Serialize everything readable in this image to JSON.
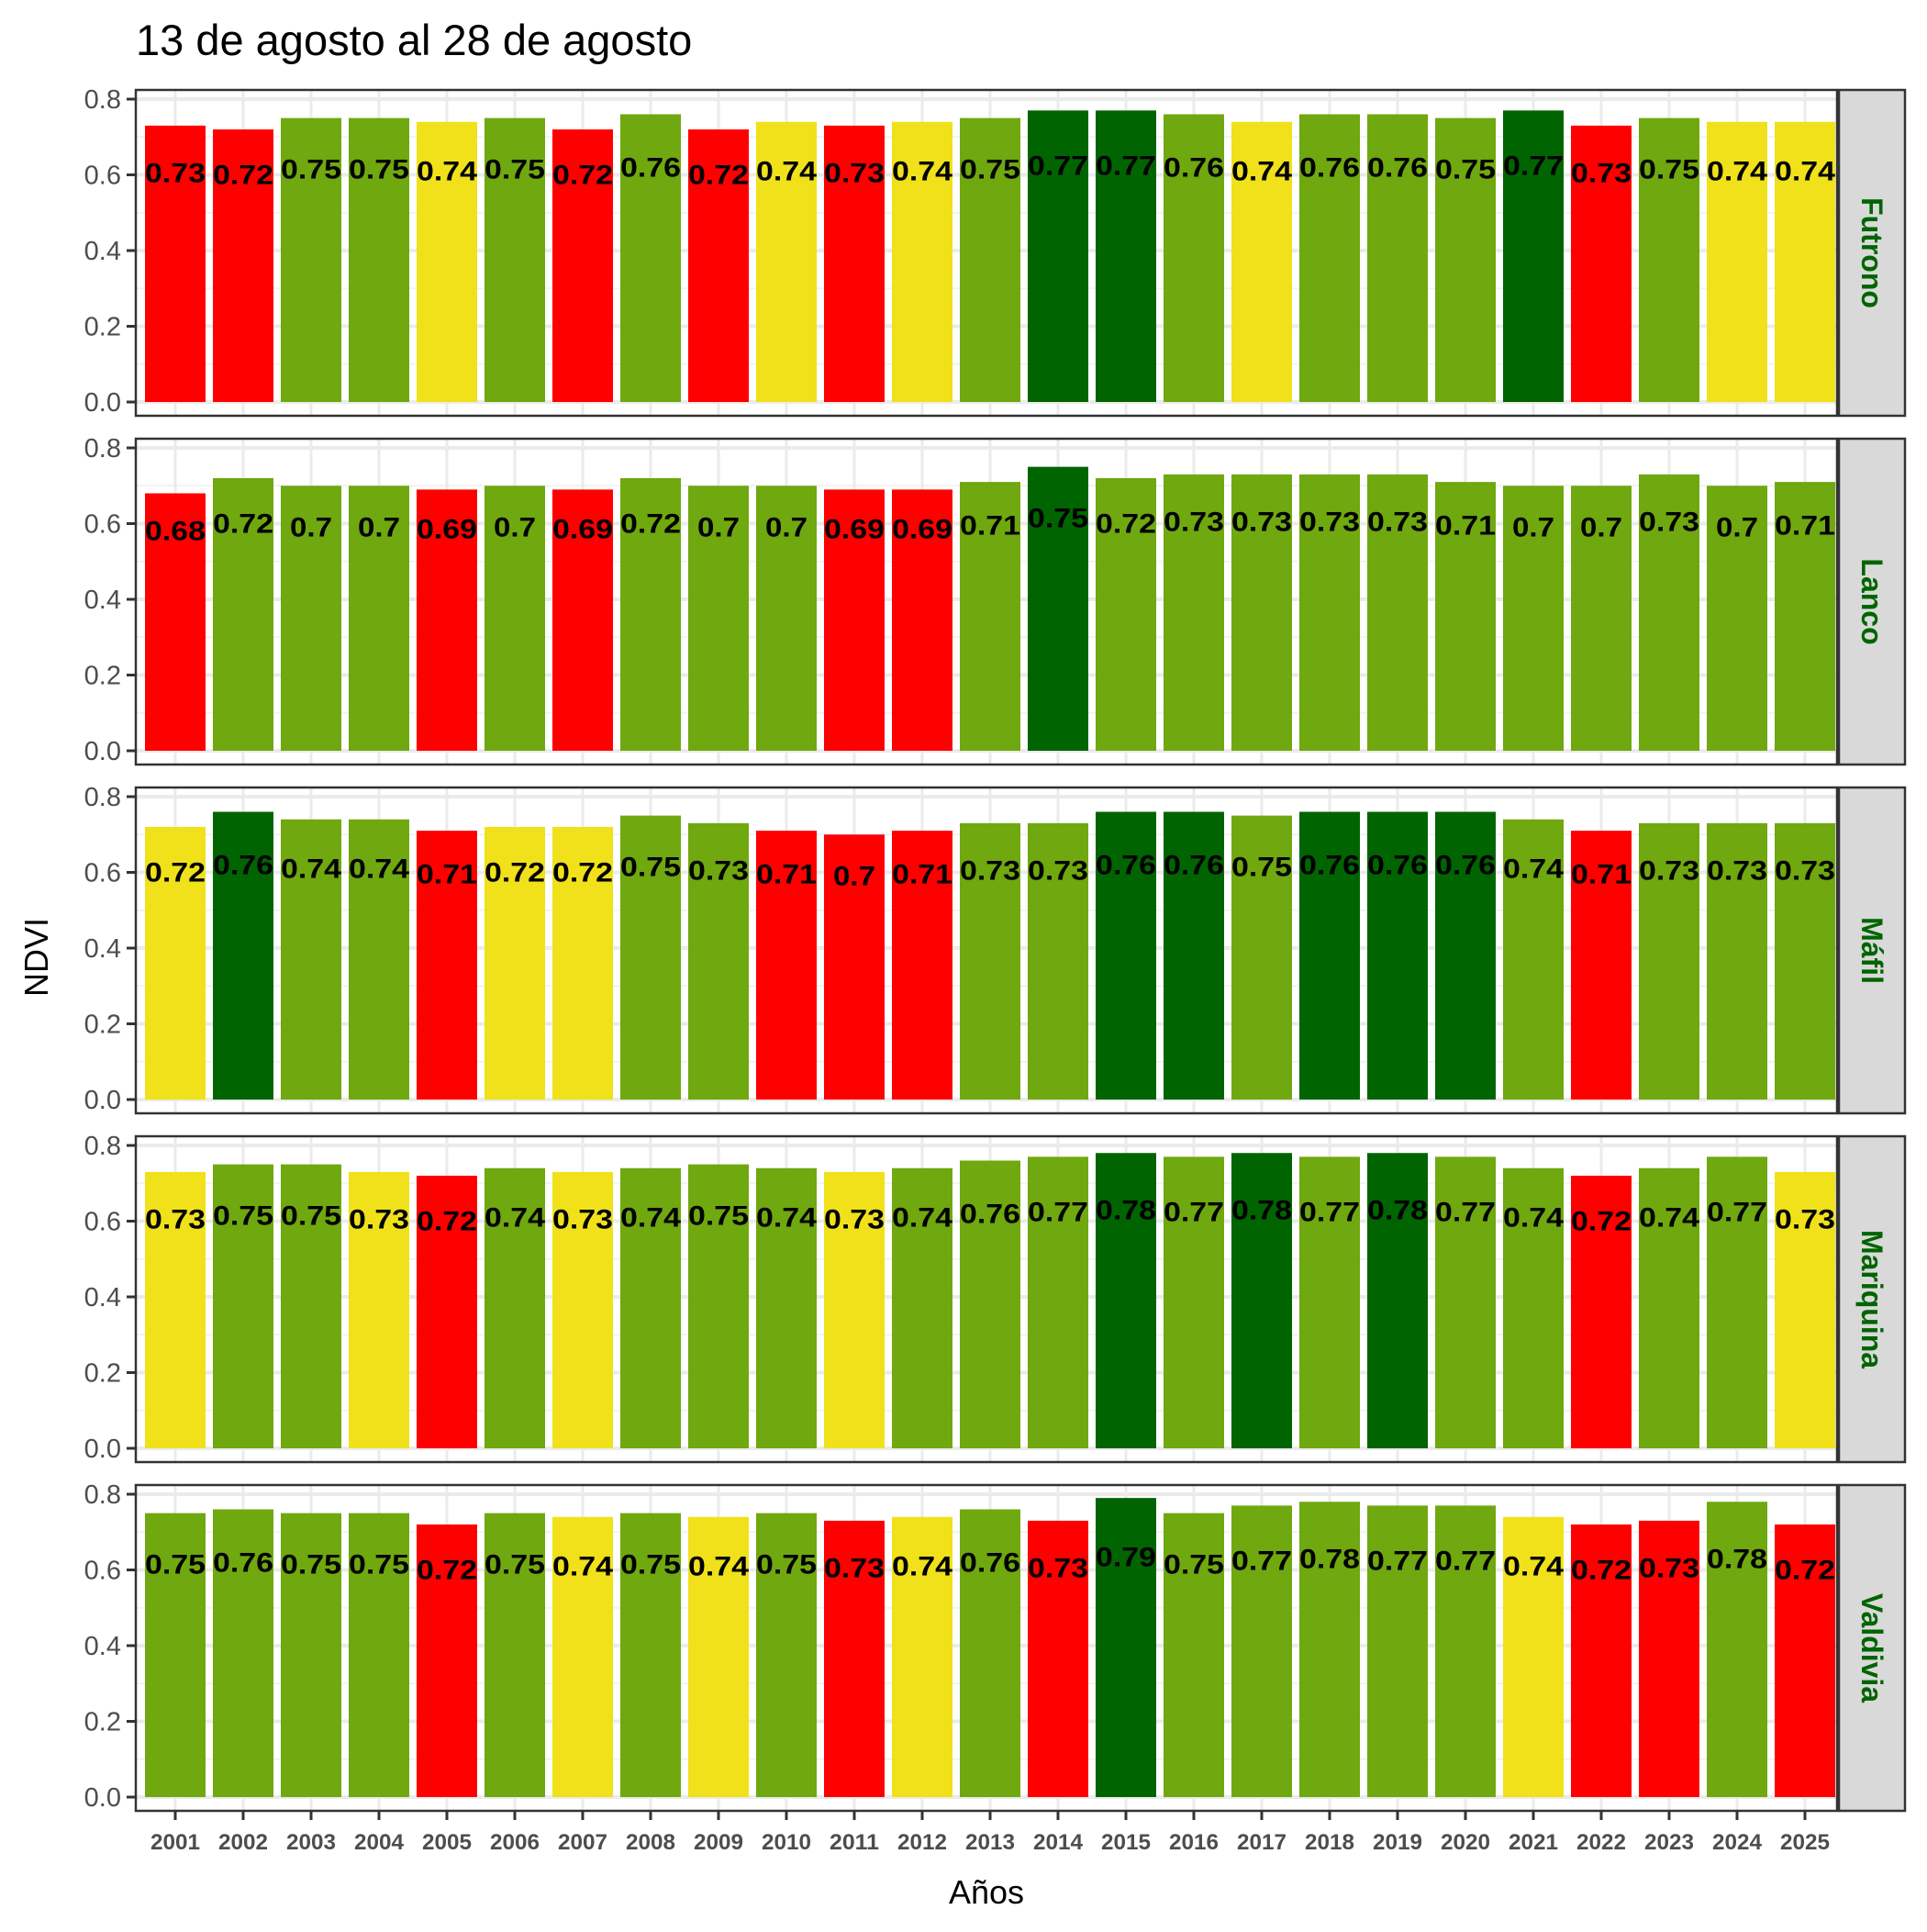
{
  "chart_data": {
    "type": "bar",
    "title": "13 de agosto al 28 de agosto",
    "xlabel": "Años",
    "ylabel": "NDVI",
    "ylim": [
      0,
      0.8
    ],
    "yticks": [
      "0.0",
      "0.2",
      "0.4",
      "0.6",
      "0.8"
    ],
    "grid": true,
    "facet_layout": "rows",
    "categories": [
      "2001",
      "2002",
      "2003",
      "2004",
      "2005",
      "2006",
      "2007",
      "2008",
      "2009",
      "2010",
      "2011",
      "2012",
      "2013",
      "2014",
      "2015",
      "2016",
      "2017",
      "2018",
      "2019",
      "2020",
      "2021",
      "2022",
      "2023",
      "2024",
      "2025"
    ],
    "color_classes": {
      "low": "#FF0000",
      "medium": "#F0E11A",
      "normal": "#6FA80F",
      "high": "#006400"
    },
    "panels": [
      {
        "name": "Futrono",
        "values": [
          0.73,
          0.72,
          0.75,
          0.75,
          0.74,
          0.75,
          0.72,
          0.76,
          0.72,
          0.74,
          0.73,
          0.74,
          0.75,
          0.77,
          0.77,
          0.76,
          0.74,
          0.76,
          0.76,
          0.75,
          0.77,
          0.73,
          0.75,
          0.74,
          0.74
        ],
        "classes": [
          "low",
          "low",
          "normal",
          "normal",
          "medium",
          "normal",
          "low",
          "normal",
          "low",
          "medium",
          "low",
          "medium",
          "normal",
          "high",
          "high",
          "normal",
          "medium",
          "normal",
          "normal",
          "normal",
          "high",
          "low",
          "normal",
          "medium",
          "medium"
        ]
      },
      {
        "name": "Lanco",
        "values": [
          0.68,
          0.72,
          0.7,
          0.7,
          0.69,
          0.7,
          0.69,
          0.72,
          0.7,
          0.7,
          0.69,
          0.69,
          0.71,
          0.75,
          0.72,
          0.73,
          0.73,
          0.73,
          0.73,
          0.71,
          0.7,
          0.7,
          0.73,
          0.7,
          0.71
        ],
        "classes": [
          "low",
          "normal",
          "normal",
          "normal",
          "low",
          "normal",
          "low",
          "normal",
          "normal",
          "normal",
          "low",
          "low",
          "normal",
          "high",
          "normal",
          "normal",
          "normal",
          "normal",
          "normal",
          "normal",
          "normal",
          "normal",
          "normal",
          "normal",
          "normal"
        ]
      },
      {
        "name": "Máfil",
        "values": [
          0.72,
          0.76,
          0.74,
          0.74,
          0.71,
          0.72,
          0.72,
          0.75,
          0.73,
          0.71,
          0.7,
          0.71,
          0.73,
          0.73,
          0.76,
          0.76,
          0.75,
          0.76,
          0.76,
          0.76,
          0.74,
          0.71,
          0.73,
          0.73,
          0.73
        ],
        "classes": [
          "medium",
          "high",
          "normal",
          "normal",
          "low",
          "medium",
          "medium",
          "normal",
          "normal",
          "low",
          "low",
          "low",
          "normal",
          "normal",
          "high",
          "high",
          "normal",
          "high",
          "high",
          "high",
          "normal",
          "low",
          "normal",
          "normal",
          "normal"
        ]
      },
      {
        "name": "Mariquina",
        "values": [
          0.73,
          0.75,
          0.75,
          0.73,
          0.72,
          0.74,
          0.73,
          0.74,
          0.75,
          0.74,
          0.73,
          0.74,
          0.76,
          0.77,
          0.78,
          0.77,
          0.78,
          0.77,
          0.78,
          0.77,
          0.74,
          0.72,
          0.74,
          0.77,
          0.73
        ],
        "classes": [
          "medium",
          "normal",
          "normal",
          "medium",
          "low",
          "normal",
          "medium",
          "normal",
          "normal",
          "normal",
          "medium",
          "normal",
          "normal",
          "normal",
          "high",
          "normal",
          "high",
          "normal",
          "high",
          "normal",
          "normal",
          "low",
          "normal",
          "normal",
          "medium"
        ]
      },
      {
        "name": "Valdivia",
        "values": [
          0.75,
          0.76,
          0.75,
          0.75,
          0.72,
          0.75,
          0.74,
          0.75,
          0.74,
          0.75,
          0.73,
          0.74,
          0.76,
          0.73,
          0.79,
          0.75,
          0.77,
          0.78,
          0.77,
          0.77,
          0.74,
          0.72,
          0.73,
          0.78,
          0.72
        ],
        "classes": [
          "normal",
          "normal",
          "normal",
          "normal",
          "low",
          "normal",
          "medium",
          "normal",
          "medium",
          "normal",
          "low",
          "medium",
          "normal",
          "low",
          "high",
          "normal",
          "normal",
          "normal",
          "normal",
          "normal",
          "medium",
          "low",
          "low",
          "normal",
          "low"
        ]
      }
    ]
  }
}
